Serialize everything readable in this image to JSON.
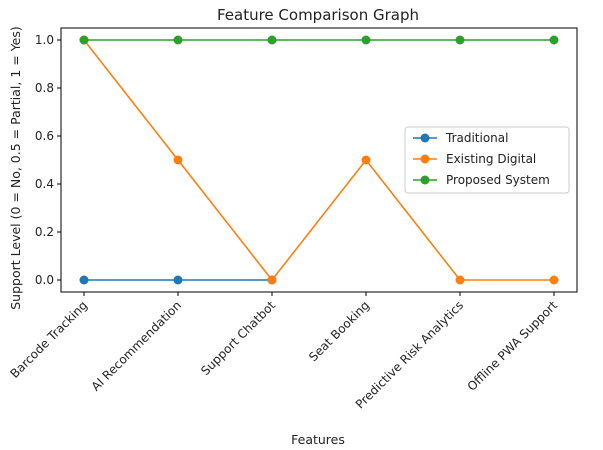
{
  "chart_data": {
    "type": "line",
    "title": "Feature Comparison Graph",
    "xlabel": "Features",
    "ylabel": "Support Level (0 = No, 0.5 = Partial, 1 = Yes)",
    "categories": [
      "Barcode Tracking",
      "AI Recommendation",
      "Support Chatbot",
      "Seat Booking",
      "Predictive Risk Analytics",
      "Offline PWA Support"
    ],
    "ylim": [
      -0.05,
      1.05
    ],
    "yticks": [
      0.0,
      0.2,
      0.4,
      0.6,
      0.8,
      1.0
    ],
    "ytick_labels": [
      "0.0",
      "0.2",
      "0.4",
      "0.6",
      "0.8",
      "1.0"
    ],
    "grid": false,
    "legend_position": "center-right",
    "series": [
      {
        "name": "Traditional",
        "color": "#1f77b4",
        "values": [
          0,
          0,
          0,
          null,
          null,
          null
        ]
      },
      {
        "name": "Existing Digital",
        "color": "#ff7f0e",
        "values": [
          1,
          0.5,
          0,
          0.5,
          0,
          0
        ]
      },
      {
        "name": "Proposed System",
        "color": "#2ca02c",
        "values": [
          1,
          1,
          1,
          1,
          1,
          1
        ]
      }
    ]
  }
}
